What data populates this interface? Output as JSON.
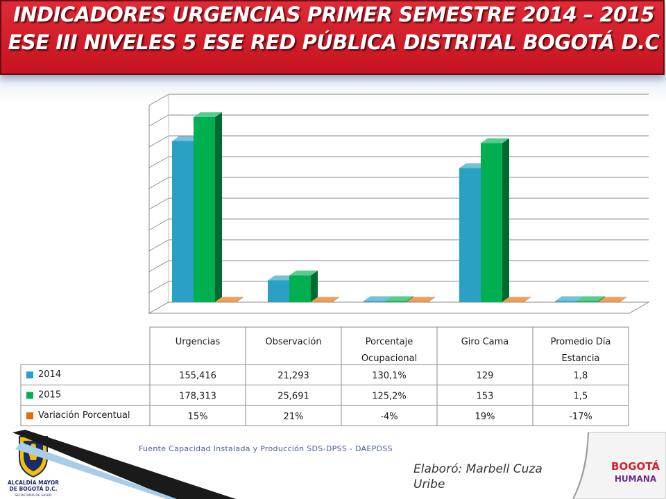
{
  "title": {
    "line1": "INDICADORES URGENCIAS PRIMER SEMESTRE 2014 – 2015",
    "line2": "ESE III NIVELES  5 ESE RED PÚBLICA DISTRITAL BOGOTÁ D.C"
  },
  "chart_data": {
    "type": "bar",
    "categories": [
      "Urgencias",
      "Observación",
      "Porcentaje Ocupacional",
      "Giro Cama",
      "Promedio Día Estancia"
    ],
    "category_lines": [
      [
        "Urgencias"
      ],
      [
        "Observación"
      ],
      [
        "Porcentaje",
        "Ocupacional"
      ],
      [
        "Giro Cama"
      ],
      [
        "Promedio Día",
        "Estancia"
      ]
    ],
    "series": [
      {
        "name": "2014",
        "color": "#2aa0c4",
        "values": [
          155416,
          21293,
          130.1,
          129,
          1.8
        ],
        "labels": [
          "155,416",
          "21,293",
          "130,1%",
          "129",
          "1,8"
        ]
      },
      {
        "name": "2015",
        "color": "#00b050",
        "values": [
          178313,
          25691,
          125.2,
          153,
          1.5
        ],
        "labels": [
          "178,313",
          "25,691",
          "125,2%",
          "153",
          "1,5"
        ]
      },
      {
        "name": "Variación Porcentual",
        "color": "#e36c09",
        "values": [
          0.15,
          0.21,
          -0.04,
          0.19,
          -0.17
        ],
        "labels": [
          "15%",
          "21%",
          "-4%",
          "19%",
          "-17%"
        ]
      }
    ],
    "bar_heights_estimated": [
      [
        155000,
        21000,
        1000,
        129000,
        1000
      ],
      [
        178000,
        25700,
        1000,
        153000,
        1000
      ],
      [
        300,
        300,
        300,
        300,
        300
      ]
    ],
    "ylim": [
      0,
      200000
    ],
    "y_gridlines": 10,
    "axis_tick_labels_shown": false,
    "legend": "data-table"
  },
  "footer": {
    "source": "Fuente Capacidad Instalada y Producción SDS-DPSS - DAEPDSS",
    "author": "Elaboró: Marbell Cuza Uribe",
    "left_logo_lines": [
      "ALCALDÍA MAYOR",
      "DE BOGOTÁ D.C.",
      "SECRETARÍA DE SALUD"
    ],
    "right_logo_lines": [
      "BOGOTÁ",
      "HUMANA"
    ]
  }
}
